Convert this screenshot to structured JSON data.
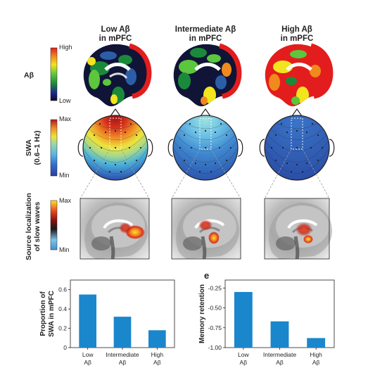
{
  "columns": [
    {
      "line1": "Low Aβ",
      "line2": "in mPFC"
    },
    {
      "line1": "Intermediate Aβ",
      "line2": "in mPFC"
    },
    {
      "line1": "High Aβ",
      "line2": "in mPFC"
    }
  ],
  "rows": {
    "abeta": {
      "label": "Aβ",
      "scale_top": "High",
      "scale_bottom": "Low"
    },
    "swa": {
      "label_line1": "SWA",
      "label_line2": "(0.6–1 Hz)",
      "scale_top": "Max",
      "scale_bottom": "Min",
      "intensity": [
        "high",
        "intermediate",
        "low"
      ]
    },
    "source": {
      "label_line1": "Source localization",
      "label_line2": "of slow waves",
      "scale_top": "Max",
      "scale_bottom": "Min"
    }
  },
  "colors": {
    "bar": "#1a86cc",
    "hot_red": "#e31d1d",
    "swa_low": "#2c58a8"
  },
  "chart_data": [
    {
      "type": "bar",
      "panel_letter": "",
      "categories": [
        [
          "Low",
          "Aβ"
        ],
        [
          "Intermediate",
          "Aβ"
        ],
        [
          "High",
          "Aβ"
        ]
      ],
      "values": [
        0.55,
        0.32,
        0.18
      ],
      "ylabel_line1": "Proportion of",
      "ylabel_line2": "SWA in mPFC",
      "ylim": [
        0,
        0.7
      ],
      "yticks": [
        0,
        0.2,
        0.4,
        0.6
      ],
      "ytick_labels": [
        "0",
        "0.2",
        "0.4",
        "0.6"
      ]
    },
    {
      "type": "bar",
      "panel_letter": "e",
      "categories": [
        [
          "Low",
          "Aβ"
        ],
        [
          "Intermediate",
          "Aβ"
        ],
        [
          "High",
          "Aβ"
        ]
      ],
      "values": [
        -0.3,
        -0.67,
        -0.88
      ],
      "ylabel_line1": "Memory retention",
      "ylabel_line2": "",
      "ylim": [
        -1.0,
        -0.15
      ],
      "yticks": [
        -1.0,
        -0.75,
        -0.5,
        -0.25
      ],
      "ytick_labels": [
        "-1.00",
        "-0.75",
        "-0.50",
        "-0.25"
      ]
    }
  ]
}
